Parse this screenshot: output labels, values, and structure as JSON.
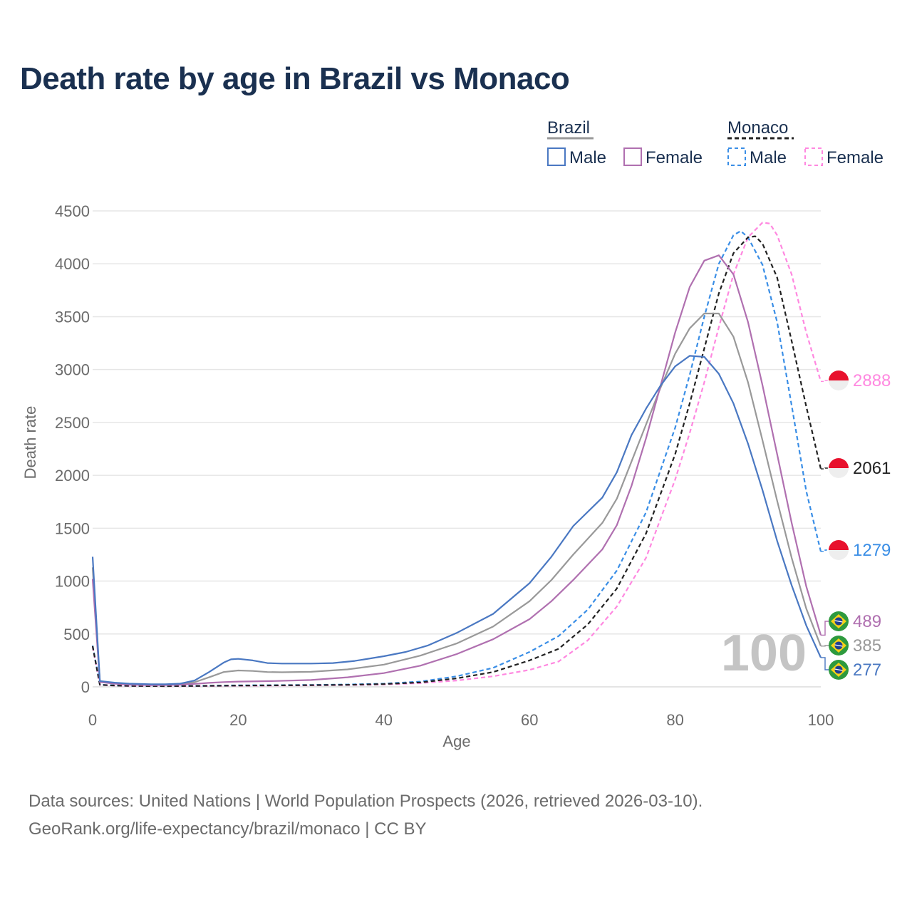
{
  "title": "Death rate by age in Brazil vs Monaco",
  "footer": {
    "line1": "Data sources: United Nations | World Population Prospects (2026, retrieved 2026-03-10).",
    "line2": "GeoRank.org/life-expectancy/brazil/monaco | CC BY"
  },
  "legend": {
    "groups": [
      {
        "title": "Brazil",
        "male": "Male",
        "female": "Female"
      },
      {
        "title": "Monaco",
        "male": "Male",
        "female": "Female"
      }
    ]
  },
  "colors": {
    "brazil_male": "#4a78c2",
    "brazil_female": "#b070b0",
    "brazil_total": "#999999",
    "monaco_male": "#3a8ee6",
    "monaco_female": "#ff88e0",
    "monaco_total": "#222222",
    "title": "#1a3050",
    "axis_text": "#6b6b6b",
    "grid": "#e6e6e6",
    "watermark": "#c4c4c4"
  },
  "watermark": "100",
  "chart_data": {
    "type": "line",
    "title": "Death rate by age in Brazil vs Monaco",
    "xlabel": "Age",
    "ylabel": "Death rate",
    "xlim": [
      0,
      100
    ],
    "ylim": [
      0,
      4500
    ],
    "xticks": [
      0,
      20,
      40,
      60,
      80,
      100
    ],
    "yticks": [
      0,
      500,
      1000,
      1500,
      2000,
      2500,
      3000,
      3500,
      4000,
      4500
    ],
    "grid": true,
    "series": [
      {
        "name": "Brazil Male",
        "country": "Brazil",
        "sex": "Male",
        "dash": false,
        "color": "#4a78c2",
        "end_label": "277",
        "end_value": 277,
        "points": [
          [
            0,
            1230
          ],
          [
            1,
            55
          ],
          [
            3,
            40
          ],
          [
            5,
            30
          ],
          [
            8,
            25
          ],
          [
            10,
            25
          ],
          [
            12,
            30
          ],
          [
            14,
            60
          ],
          [
            16,
            140
          ],
          [
            18,
            230
          ],
          [
            19,
            260
          ],
          [
            20,
            265
          ],
          [
            22,
            250
          ],
          [
            24,
            225
          ],
          [
            26,
            220
          ],
          [
            30,
            220
          ],
          [
            33,
            225
          ],
          [
            36,
            245
          ],
          [
            40,
            290
          ],
          [
            43,
            330
          ],
          [
            46,
            390
          ],
          [
            50,
            510
          ],
          [
            55,
            690
          ],
          [
            60,
            980
          ],
          [
            63,
            1230
          ],
          [
            66,
            1520
          ],
          [
            70,
            1790
          ],
          [
            72,
            2030
          ],
          [
            74,
            2380
          ],
          [
            76,
            2630
          ],
          [
            78,
            2850
          ],
          [
            80,
            3030
          ],
          [
            82,
            3130
          ],
          [
            84,
            3120
          ],
          [
            86,
            2960
          ],
          [
            88,
            2680
          ],
          [
            90,
            2300
          ],
          [
            92,
            1860
          ],
          [
            94,
            1380
          ],
          [
            96,
            960
          ],
          [
            98,
            580
          ],
          [
            100,
            277
          ]
        ]
      },
      {
        "name": "Brazil Female",
        "country": "Brazil",
        "sex": "Female",
        "dash": false,
        "color": "#b070b0",
        "end_label": "489",
        "end_value": 489,
        "points": [
          [
            0,
            1020
          ],
          [
            1,
            45
          ],
          [
            3,
            30
          ],
          [
            5,
            20
          ],
          [
            8,
            16
          ],
          [
            10,
            17
          ],
          [
            12,
            20
          ],
          [
            14,
            28
          ],
          [
            16,
            38
          ],
          [
            18,
            45
          ],
          [
            20,
            50
          ],
          [
            25,
            55
          ],
          [
            30,
            65
          ],
          [
            35,
            90
          ],
          [
            40,
            130
          ],
          [
            45,
            200
          ],
          [
            50,
            310
          ],
          [
            55,
            450
          ],
          [
            60,
            640
          ],
          [
            63,
            810
          ],
          [
            66,
            1010
          ],
          [
            70,
            1300
          ],
          [
            72,
            1530
          ],
          [
            74,
            1900
          ],
          [
            76,
            2350
          ],
          [
            78,
            2850
          ],
          [
            80,
            3350
          ],
          [
            82,
            3780
          ],
          [
            84,
            4030
          ],
          [
            86,
            4080
          ],
          [
            88,
            3900
          ],
          [
            90,
            3450
          ],
          [
            92,
            2850
          ],
          [
            94,
            2200
          ],
          [
            96,
            1550
          ],
          [
            98,
            950
          ],
          [
            100,
            489
          ]
        ]
      },
      {
        "name": "Brazil Total",
        "country": "Brazil",
        "sex": "Total",
        "dash": false,
        "color": "#999999",
        "end_label": "385",
        "end_value": 385,
        "points": [
          [
            0,
            1130
          ],
          [
            1,
            50
          ],
          [
            3,
            35
          ],
          [
            5,
            25
          ],
          [
            8,
            20
          ],
          [
            10,
            21
          ],
          [
            12,
            25
          ],
          [
            14,
            44
          ],
          [
            16,
            90
          ],
          [
            18,
            140
          ],
          [
            20,
            155
          ],
          [
            22,
            150
          ],
          [
            24,
            140
          ],
          [
            26,
            138
          ],
          [
            30,
            142
          ],
          [
            35,
            165
          ],
          [
            40,
            210
          ],
          [
            45,
            295
          ],
          [
            50,
            410
          ],
          [
            55,
            570
          ],
          [
            60,
            810
          ],
          [
            63,
            1010
          ],
          [
            66,
            1250
          ],
          [
            70,
            1550
          ],
          [
            72,
            1780
          ],
          [
            74,
            2130
          ],
          [
            76,
            2480
          ],
          [
            78,
            2830
          ],
          [
            80,
            3150
          ],
          [
            82,
            3390
          ],
          [
            84,
            3530
          ],
          [
            86,
            3530
          ],
          [
            88,
            3310
          ],
          [
            90,
            2880
          ],
          [
            92,
            2330
          ],
          [
            94,
            1760
          ],
          [
            96,
            1220
          ],
          [
            98,
            740
          ],
          [
            100,
            385
          ]
        ]
      },
      {
        "name": "Monaco Male",
        "country": "Monaco",
        "sex": "Male",
        "dash": true,
        "color": "#3a8ee6",
        "end_label": "1279",
        "end_value": 1279,
        "points": [
          [
            0,
            390
          ],
          [
            1,
            20
          ],
          [
            3,
            14
          ],
          [
            5,
            10
          ],
          [
            10,
            8
          ],
          [
            15,
            10
          ],
          [
            20,
            14
          ],
          [
            25,
            16
          ],
          [
            30,
            18
          ],
          [
            35,
            22
          ],
          [
            40,
            30
          ],
          [
            45,
            50
          ],
          [
            50,
            100
          ],
          [
            55,
            180
          ],
          [
            60,
            330
          ],
          [
            64,
            480
          ],
          [
            68,
            730
          ],
          [
            72,
            1100
          ],
          [
            76,
            1650
          ],
          [
            80,
            2450
          ],
          [
            82,
            2950
          ],
          [
            84,
            3500
          ],
          [
            86,
            4000
          ],
          [
            88,
            4270
          ],
          [
            89,
            4310
          ],
          [
            90,
            4250
          ],
          [
            92,
            3990
          ],
          [
            94,
            3450
          ],
          [
            96,
            2660
          ],
          [
            98,
            1850
          ],
          [
            100,
            1279
          ]
        ]
      },
      {
        "name": "Monaco Female",
        "country": "Monaco",
        "sex": "Female",
        "dash": true,
        "color": "#ff88e0",
        "end_label": "2888",
        "end_value": 2888,
        "points": [
          [
            0,
            380
          ],
          [
            1,
            18
          ],
          [
            3,
            12
          ],
          [
            5,
            8
          ],
          [
            10,
            6
          ],
          [
            15,
            8
          ],
          [
            20,
            10
          ],
          [
            25,
            12
          ],
          [
            30,
            14
          ],
          [
            35,
            17
          ],
          [
            40,
            22
          ],
          [
            45,
            35
          ],
          [
            50,
            60
          ],
          [
            55,
            100
          ],
          [
            60,
            160
          ],
          [
            64,
            240
          ],
          [
            68,
            440
          ],
          [
            72,
            760
          ],
          [
            76,
            1220
          ],
          [
            80,
            1960
          ],
          [
            82,
            2400
          ],
          [
            84,
            2880
          ],
          [
            86,
            3400
          ],
          [
            88,
            3900
          ],
          [
            90,
            4250
          ],
          [
            92,
            4390
          ],
          [
            93,
            4380
          ],
          [
            94,
            4270
          ],
          [
            96,
            3900
          ],
          [
            98,
            3350
          ],
          [
            100,
            2888
          ]
        ]
      },
      {
        "name": "Monaco Total",
        "country": "Monaco",
        "sex": "Total",
        "dash": true,
        "color": "#222222",
        "end_label": "2061",
        "end_value": 2061,
        "points": [
          [
            0,
            385
          ],
          [
            1,
            19
          ],
          [
            3,
            13
          ],
          [
            5,
            9
          ],
          [
            10,
            7
          ],
          [
            15,
            9
          ],
          [
            20,
            12
          ],
          [
            25,
            14
          ],
          [
            30,
            16
          ],
          [
            35,
            19
          ],
          [
            40,
            26
          ],
          [
            45,
            42
          ],
          [
            50,
            80
          ],
          [
            55,
            140
          ],
          [
            60,
            250
          ],
          [
            64,
            360
          ],
          [
            68,
            590
          ],
          [
            72,
            930
          ],
          [
            76,
            1450
          ],
          [
            80,
            2200
          ],
          [
            82,
            2680
          ],
          [
            84,
            3200
          ],
          [
            86,
            3720
          ],
          [
            88,
            4100
          ],
          [
            90,
            4250
          ],
          [
            91,
            4260
          ],
          [
            92,
            4190
          ],
          [
            94,
            3870
          ],
          [
            96,
            3270
          ],
          [
            98,
            2650
          ],
          [
            100,
            2061
          ]
        ]
      }
    ]
  }
}
